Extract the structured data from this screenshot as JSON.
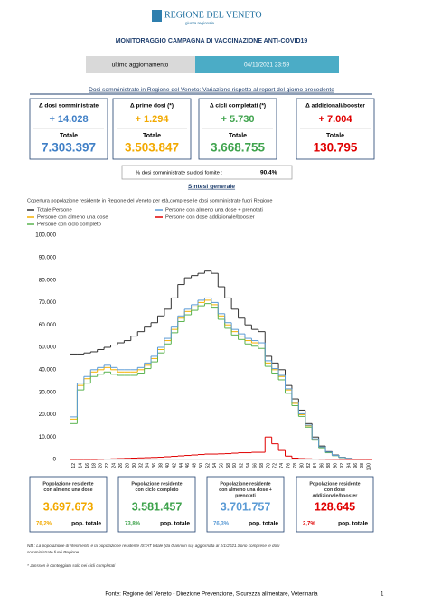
{
  "header": {
    "logo": "REGIONE DEL VENETO",
    "logo_sub": "giunta regionale",
    "title": "MONITORAGGIO CAMPAGNA DI VACCINAZIONE ANTI-COVID19",
    "update_label": "ultimo aggiornamento",
    "update_value": "04/11/2021 23:59"
  },
  "doses": {
    "heading": "Dosi somministrate in Regione del Veneto: Variazione rispetto al report del giorno precedente",
    "tiles": [
      {
        "label": "Δ dosi somministrate",
        "delta": "+ 14.028",
        "total_label": "Totale",
        "total": "7.303.397",
        "color": "#3f7fc6"
      },
      {
        "label": "Δ prime dosi (*)",
        "delta": "+ 1.294",
        "total_label": "Totale",
        "total": "3.503.847",
        "color": "#f2a900"
      },
      {
        "label": "Δ cicli completati (*)",
        "delta": "+ 5.730",
        "total_label": "Totale",
        "total": "3.668.755",
        "color": "#3fa34d"
      },
      {
        "label": "Δ addizionali/booster",
        "delta": "+ 7.004",
        "total_label": "Totale",
        "total": "130.795",
        "color": "#e00000"
      }
    ],
    "ratio_label": "% dosi somministrate su dosi fornite :",
    "ratio_value": "90,4%"
  },
  "section": "Sintesi generale",
  "chart_data": {
    "type": "step-line",
    "subtitle": "Copertura popolazione residente in Regione del Veneto per età,comprese le dosi somministrate fuori Regione",
    "x": [
      12,
      14,
      16,
      18,
      20,
      22,
      24,
      26,
      28,
      30,
      32,
      34,
      36,
      38,
      40,
      42,
      44,
      46,
      48,
      50,
      52,
      54,
      56,
      58,
      60,
      62,
      64,
      66,
      68,
      70,
      72,
      74,
      76,
      78,
      80,
      82,
      84,
      86,
      88,
      90,
      92,
      94,
      96,
      98,
      100
    ],
    "xlim": [
      12,
      102
    ],
    "series": [
      {
        "name": "Totale Persone",
        "color": "#333333",
        "values": [
          47000,
          47000,
          47500,
          48000,
          49000,
          50000,
          51000,
          52000,
          53000,
          55000,
          57000,
          59000,
          61000,
          64000,
          67000,
          72000,
          78000,
          81000,
          82000,
          83000,
          84000,
          83000,
          77000,
          72000,
          67000,
          63000,
          60000,
          58000,
          57000,
          46000,
          43000,
          40000,
          33000,
          27000,
          22000,
          16000,
          10000,
          6000,
          3500,
          2000,
          1000,
          500,
          200,
          100,
          50
        ]
      },
      {
        "name": "Persone con almeno una dose",
        "color": "#f5b000",
        "values": [
          18000,
          33000,
          36000,
          39000,
          40000,
          41000,
          40000,
          39000,
          39000,
          39000,
          40000,
          42000,
          45000,
          49000,
          53000,
          58000,
          63000,
          66000,
          68000,
          70000,
          71000,
          69000,
          64000,
          60000,
          57000,
          55000,
          53000,
          52000,
          51000,
          43000,
          40000,
          37000,
          31000,
          25000,
          20000,
          15000,
          9000,
          5500,
          3200,
          1800,
          900,
          400,
          150,
          80,
          40
        ]
      },
      {
        "name": "Persone con ciclo completo",
        "color": "#5bb450",
        "values": [
          16000,
          31000,
          34000,
          37000,
          38000,
          39000,
          38000,
          37500,
          37500,
          37500,
          38500,
          40500,
          43500,
          47500,
          51500,
          56500,
          61500,
          64500,
          66500,
          68500,
          69500,
          67500,
          62500,
          58500,
          55500,
          53500,
          51500,
          50500,
          49500,
          41500,
          38500,
          35500,
          29500,
          24000,
          19200,
          14400,
          8600,
          5200,
          3000,
          1700,
          850,
          380,
          140,
          75,
          38
        ]
      },
      {
        "name": "Persone con almeno una dose + prenotati",
        "color": "#5b9bd5",
        "values": [
          19000,
          34000,
          37000,
          40000,
          41000,
          42000,
          41000,
          40000,
          40000,
          40000,
          41000,
          43000,
          46000,
          50000,
          54000,
          59000,
          64000,
          67000,
          69000,
          71000,
          72000,
          70000,
          65000,
          61000,
          58000,
          56000,
          54000,
          53000,
          52000,
          44000,
          40500,
          37500,
          31500,
          25500,
          20400,
          15300,
          9200,
          5600,
          3300,
          1850,
          920,
          410,
          155,
          82,
          41
        ]
      },
      {
        "name": "Persone con dose addizionale/booster",
        "color": "#e00000",
        "values": [
          0,
          0,
          0,
          0,
          100,
          200,
          300,
          400,
          500,
          600,
          700,
          800,
          900,
          1000,
          1200,
          1400,
          1600,
          1800,
          2000,
          2200,
          2400,
          2400,
          2500,
          2600,
          2800,
          3000,
          3000,
          3200,
          3200,
          10000,
          7000,
          4000,
          1500,
          600,
          400,
          300,
          200,
          150,
          100,
          80,
          50,
          30,
          20,
          10,
          5
        ]
      }
    ],
    "ylim": [
      0,
      100000
    ],
    "yticks": [
      0,
      {
        "value": 10000,
        "label": "10.000"
      },
      {
        "value": 20000,
        "label": "20.000"
      },
      {
        "value": 30000,
        "label": "30.000"
      },
      {
        "value": 40000,
        "label": "40.000"
      },
      {
        "value": 50000,
        "label": "50.000"
      },
      {
        "value": 60000,
        "label": "60.000"
      },
      {
        "value": 70000,
        "label": "70.000"
      },
      {
        "value": 80000,
        "label": "80.000"
      },
      {
        "value": 90000,
        "label": "90.000"
      },
      {
        "value": 100000,
        "label": "100.000"
      }
    ],
    "grid": false
  },
  "summary": [
    {
      "lines": [
        "Popolazione residente",
        "con almeno una dose"
      ],
      "value": "3.697.673",
      "pct": "76,2%",
      "pct_label": "pop. totale",
      "color": "#f2a900"
    },
    {
      "lines": [
        "Popolazione residente",
        "con ciclo completo"
      ],
      "value": "3.581.457",
      "pct": "73,8%",
      "pct_label": "pop. totale",
      "color": "#3fa34d"
    },
    {
      "lines": [
        "Popolazione residente",
        "con almeno una dose +",
        "prenotati"
      ],
      "value": "3.701.757",
      "pct": "76,3%",
      "pct_label": "pop. totale",
      "color": "#5b9bd5"
    },
    {
      "lines": [
        "Popolazione residente",
        "con dose",
        "addizionale/booster"
      ],
      "value": "128.645",
      "pct": "2,7%",
      "pct_label": "pop. totale",
      "color": "#e00000"
    }
  ],
  "notes": [
    "NB : La popolazione di riferimento è la popolazione residente ISTAT totale (da 0 anni in su) aggiornata al 1/1/2021.Sono comprese le dosi",
    "somministrate fuori Regione",
    "* Janssen è conteggiato solo nei cicli completati"
  ],
  "footer": {
    "source": "Fonte: Regione del Veneto - Direzione Prevenzione, Sicurezza alimentare, Veterinaria",
    "page": "1"
  }
}
